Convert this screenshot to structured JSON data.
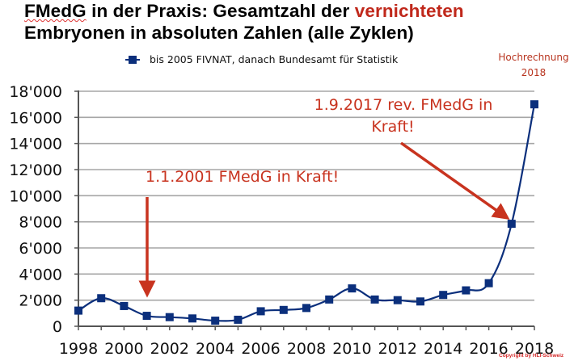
{
  "slide": {
    "title_line1_prefix": "FMedG",
    "title_line1_middle": " in der Praxis: Gesamtzahl der ",
    "title_line1_accent": "vernichteten",
    "title_line2": "Embryonen in absoluten Zahlen (alle Zyklen)",
    "legend_label": "bis 2005 FIVNAT, danach Bundesamt für Statistik",
    "projection_line1": "Hochrechnung",
    "projection_line2": "2018",
    "annotation_2001": "1.1.2001 FMedG in Kraft!",
    "annotation_2017_line1": "1.9.2017 rev. FMedG in",
    "annotation_2017_line2": "Kraft!",
    "copyright": "Copyright by HLI-Schweiz",
    "colors": {
      "series": "#0b2f7c",
      "accent_red": "#c8331f",
      "grid": "#a6a6a6",
      "axis": "#555555"
    }
  },
  "chart_data": {
    "type": "line",
    "title": "FMedG in der Praxis: Gesamtzahl der vernichteten Embryonen in absoluten Zahlen (alle Zyklen)",
    "xlabel": "",
    "ylabel": "",
    "x": [
      1998,
      1999,
      2000,
      2001,
      2002,
      2003,
      2004,
      2005,
      2006,
      2007,
      2008,
      2009,
      2010,
      2011,
      2012,
      2013,
      2014,
      2015,
      2016,
      2017,
      2018
    ],
    "series": [
      {
        "name": "bis 2005 FIVNAT, danach Bundesamt für Statistik",
        "values": [
          1200,
          2150,
          1550,
          800,
          700,
          600,
          430,
          500,
          1150,
          1250,
          1400,
          2050,
          2900,
          2050,
          2000,
          1900,
          2400,
          2750,
          3300,
          7850,
          17000
        ]
      }
    ],
    "x_ticks": [
      "1998",
      "2000",
      "2002",
      "2004",
      "2006",
      "2008",
      "2010",
      "2012",
      "2014",
      "2016",
      "2018"
    ],
    "y_ticks": [
      "0",
      "2'000",
      "4'000",
      "6'000",
      "8'000",
      "10'000",
      "12'000",
      "14'000",
      "16'000",
      "18'000"
    ],
    "ylim": [
      0,
      18000
    ],
    "xlim": [
      1998,
      2018
    ],
    "grid": "horizontal",
    "legend_position": "top",
    "annotations": [
      {
        "text": "1.1.2001 FMedG in Kraft!",
        "target_x": 2001,
        "arrow": "down"
      },
      {
        "text": "1.9.2017 rev. FMedG in Kraft!",
        "target_x": 2017,
        "target_y": 7850,
        "arrow": "diagonal"
      },
      {
        "text": "Hochrechnung 2018",
        "target_x": 2018
      }
    ]
  }
}
